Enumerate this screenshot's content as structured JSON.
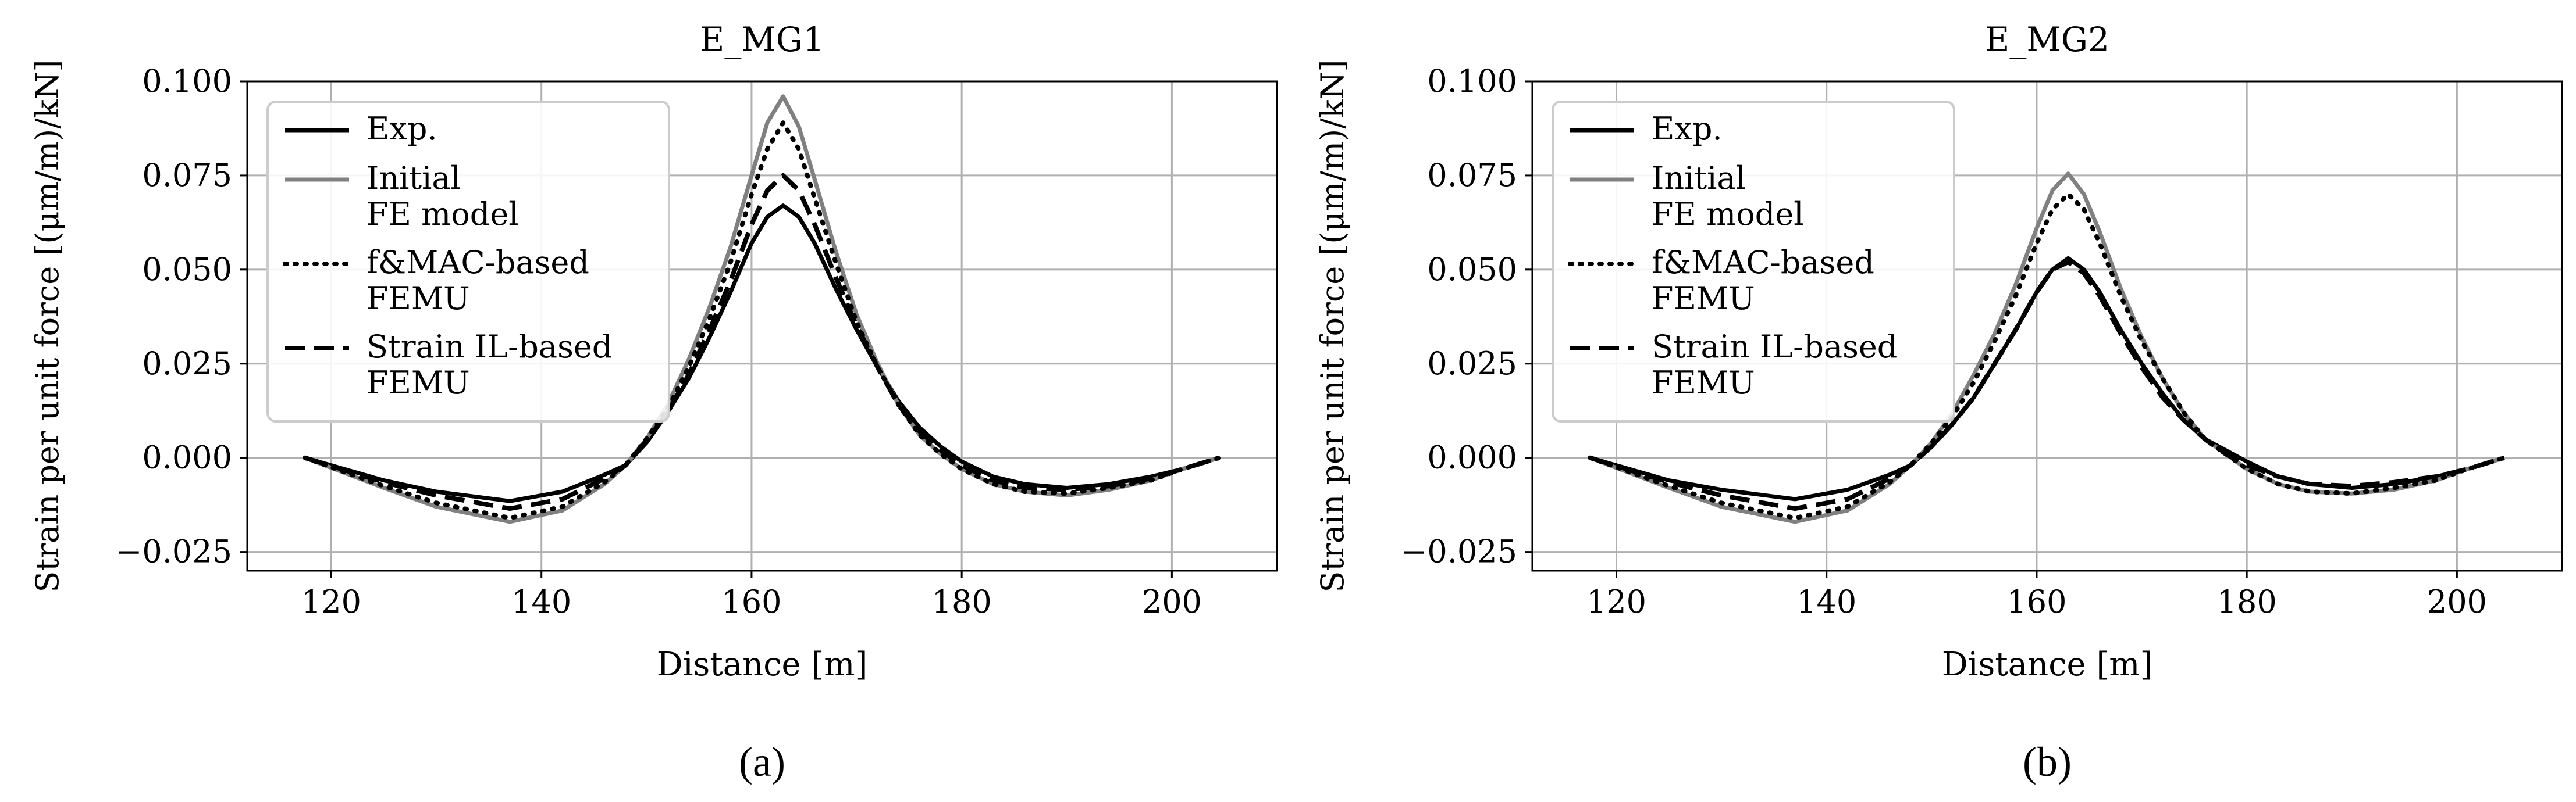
{
  "chart_data": [
    {
      "type": "line",
      "panel_label": "(a)",
      "title": "E_MG1",
      "xlabel": "Distance [m]",
      "ylabel": "Strain per unit force [(μm/m)/kN]",
      "xlim": [
        112,
        210
      ],
      "ylim": [
        -0.03,
        0.1
      ],
      "xticks": [
        120,
        140,
        160,
        180,
        200
      ],
      "xtick_labels": [
        "120",
        "140",
        "160",
        "180",
        "200"
      ],
      "yticks": [
        -0.025,
        0.0,
        0.025,
        0.05,
        0.075,
        0.1
      ],
      "ytick_labels": [
        "−0.025",
        "0.000",
        "0.025",
        "0.050",
        "0.075",
        "0.100"
      ],
      "grid": true,
      "legend_position": "top-left",
      "legend": [
        {
          "lines": [
            "Exp."
          ],
          "series": 0
        },
        {
          "lines": [
            "Initial",
            "FE model"
          ],
          "series": 1
        },
        {
          "lines": [
            "f&MAC-based",
            "FEMU"
          ],
          "series": 2
        },
        {
          "lines": [
            "Strain IL-based",
            "FEMU"
          ],
          "series": 3
        }
      ],
      "series": [
        {
          "name": "Exp.",
          "color": "#000000",
          "style": "solid",
          "x": [
            117.5,
            125,
            130,
            137,
            142,
            146,
            148,
            150,
            152,
            154,
            156,
            158,
            160,
            161.5,
            163,
            164.5,
            166,
            168,
            170,
            172,
            174,
            176,
            178,
            180,
            183,
            186,
            190,
            194,
            198,
            201,
            204.5
          ],
          "y": [
            0,
            -0.006,
            -0.009,
            -0.0115,
            -0.009,
            -0.0045,
            -0.002,
            0.004,
            0.012,
            0.021,
            0.032,
            0.044,
            0.057,
            0.064,
            0.067,
            0.064,
            0.057,
            0.045,
            0.034,
            0.024,
            0.015,
            0.008,
            0.003,
            -0.001,
            -0.005,
            -0.007,
            -0.008,
            -0.007,
            -0.005,
            -0.003,
            0
          ]
        },
        {
          "name": "Initial FE model",
          "color": "#808080",
          "style": "solid",
          "x": [
            117.5,
            125,
            130,
            137,
            142,
            146,
            148,
            150,
            152,
            154,
            156,
            158,
            160,
            161.5,
            163,
            164.5,
            166,
            168,
            170,
            172,
            174,
            176,
            178,
            180,
            183,
            186,
            190,
            194,
            198,
            201,
            204.5
          ],
          "y": [
            0,
            -0.008,
            -0.013,
            -0.017,
            -0.014,
            -0.007,
            -0.002,
            0.005,
            0.014,
            0.026,
            0.04,
            0.056,
            0.075,
            0.089,
            0.096,
            0.088,
            0.074,
            0.055,
            0.038,
            0.025,
            0.014,
            0.006,
            0.001,
            -0.003,
            -0.007,
            -0.009,
            -0.01,
            -0.0085,
            -0.006,
            -0.003,
            0
          ]
        },
        {
          "name": "f&MAC-based FEMU",
          "color": "#000000",
          "style": "dotted",
          "x": [
            117.5,
            125,
            130,
            137,
            142,
            146,
            148,
            150,
            152,
            154,
            156,
            158,
            160,
            161.5,
            163,
            164.5,
            166,
            168,
            170,
            172,
            174,
            176,
            178,
            180,
            183,
            186,
            190,
            194,
            198,
            201,
            204.5
          ],
          "y": [
            0,
            -0.0075,
            -0.012,
            -0.016,
            -0.013,
            -0.0065,
            -0.002,
            0.005,
            0.013,
            0.024,
            0.037,
            0.052,
            0.07,
            0.082,
            0.089,
            0.082,
            0.069,
            0.052,
            0.036,
            0.024,
            0.014,
            0.006,
            0.001,
            -0.003,
            -0.007,
            -0.009,
            -0.0095,
            -0.008,
            -0.006,
            -0.003,
            0
          ]
        },
        {
          "name": "Strain IL-based FEMU",
          "color": "#000000",
          "style": "dashed",
          "x": [
            117.5,
            125,
            130,
            137,
            142,
            146,
            148,
            150,
            152,
            154,
            156,
            158,
            160,
            161.5,
            163,
            164.5,
            166,
            168,
            170,
            172,
            174,
            176,
            178,
            180,
            183,
            186,
            190,
            194,
            198,
            201,
            204.5
          ],
          "y": [
            0,
            -0.0065,
            -0.01,
            -0.0135,
            -0.011,
            -0.0055,
            -0.002,
            0.0045,
            0.012,
            0.022,
            0.034,
            0.047,
            0.062,
            0.071,
            0.075,
            0.071,
            0.062,
            0.048,
            0.035,
            0.024,
            0.014,
            0.007,
            0.002,
            -0.002,
            -0.006,
            -0.008,
            -0.0085,
            -0.0075,
            -0.0055,
            -0.003,
            0
          ]
        }
      ]
    },
    {
      "type": "line",
      "panel_label": "(b)",
      "title": "E_MG2",
      "xlabel": "Distance [m]",
      "ylabel": "Strain per unit force [(μm/m)/kN]",
      "xlim": [
        112,
        210
      ],
      "ylim": [
        -0.03,
        0.1
      ],
      "xticks": [
        120,
        140,
        160,
        180,
        200
      ],
      "xtick_labels": [
        "120",
        "140",
        "160",
        "180",
        "200"
      ],
      "yticks": [
        -0.025,
        0.0,
        0.025,
        0.05,
        0.075,
        0.1
      ],
      "ytick_labels": [
        "−0.025",
        "0.000",
        "0.025",
        "0.050",
        "0.075",
        "0.100"
      ],
      "grid": true,
      "legend_position": "top-left",
      "legend": [
        {
          "lines": [
            "Exp."
          ],
          "series": 0
        },
        {
          "lines": [
            "Initial",
            "FE model"
          ],
          "series": 1
        },
        {
          "lines": [
            "f&MAC-based",
            "FEMU"
          ],
          "series": 2
        },
        {
          "lines": [
            "Strain IL-based",
            "FEMU"
          ],
          "series": 3
        }
      ],
      "series": [
        {
          "name": "Exp.",
          "color": "#000000",
          "style": "solid",
          "x": [
            117.5,
            125,
            130,
            137,
            142,
            146,
            148,
            150,
            152,
            154,
            156,
            158,
            160,
            161.5,
            163,
            164.5,
            166,
            168,
            170,
            172,
            174,
            176,
            178,
            180,
            183,
            186,
            190,
            194,
            198,
            201,
            204.5
          ],
          "y": [
            0,
            -0.006,
            -0.0085,
            -0.011,
            -0.0085,
            -0.0045,
            -0.002,
            0.003,
            0.009,
            0.016,
            0.025,
            0.034,
            0.044,
            0.05,
            0.053,
            0.05,
            0.044,
            0.034,
            0.025,
            0.017,
            0.01,
            0.005,
            0.002,
            -0.001,
            -0.005,
            -0.007,
            -0.008,
            -0.007,
            -0.005,
            -0.003,
            0
          ]
        },
        {
          "name": "Initial FE model",
          "color": "#808080",
          "style": "solid",
          "x": [
            117.5,
            125,
            130,
            137,
            142,
            146,
            148,
            150,
            152,
            154,
            156,
            158,
            160,
            161.5,
            163,
            164.5,
            166,
            168,
            170,
            172,
            174,
            176,
            178,
            180,
            183,
            186,
            190,
            194,
            198,
            201,
            204.5
          ],
          "y": [
            0,
            -0.008,
            -0.013,
            -0.017,
            -0.014,
            -0.007,
            -0.002,
            0.004,
            0.012,
            0.022,
            0.033,
            0.046,
            0.061,
            0.071,
            0.0755,
            0.07,
            0.06,
            0.045,
            0.032,
            0.021,
            0.012,
            0.005,
            0.001,
            -0.003,
            -0.007,
            -0.009,
            -0.0095,
            -0.0085,
            -0.006,
            -0.003,
            0
          ]
        },
        {
          "name": "f&MAC-based FEMU",
          "color": "#000000",
          "style": "dotted",
          "x": [
            117.5,
            125,
            130,
            137,
            142,
            146,
            148,
            150,
            152,
            154,
            156,
            158,
            160,
            161.5,
            163,
            164.5,
            166,
            168,
            170,
            172,
            174,
            176,
            178,
            180,
            183,
            186,
            190,
            194,
            198,
            201,
            204.5
          ],
          "y": [
            0,
            -0.0075,
            -0.012,
            -0.016,
            -0.013,
            -0.0065,
            -0.002,
            0.004,
            0.011,
            0.02,
            0.031,
            0.043,
            0.057,
            0.066,
            0.07,
            0.066,
            0.057,
            0.043,
            0.031,
            0.021,
            0.012,
            0.005,
            0.001,
            -0.003,
            -0.007,
            -0.009,
            -0.0095,
            -0.008,
            -0.006,
            -0.003,
            0
          ]
        },
        {
          "name": "Strain IL-based FEMU",
          "color": "#000000",
          "style": "dashed",
          "x": [
            117.5,
            125,
            130,
            137,
            142,
            146,
            148,
            150,
            152,
            154,
            156,
            158,
            160,
            161.5,
            163,
            164.5,
            166,
            168,
            170,
            172,
            174,
            176,
            178,
            180,
            183,
            186,
            190,
            194,
            198,
            201,
            204.5
          ],
          "y": [
            0,
            -0.0065,
            -0.01,
            -0.0135,
            -0.011,
            -0.0055,
            -0.002,
            0.003,
            0.009,
            0.016,
            0.025,
            0.034,
            0.044,
            0.05,
            0.052,
            0.049,
            0.043,
            0.033,
            0.024,
            0.016,
            0.01,
            0.005,
            0.001,
            -0.002,
            -0.005,
            -0.007,
            -0.0075,
            -0.0065,
            -0.005,
            -0.003,
            0
          ]
        }
      ]
    }
  ]
}
